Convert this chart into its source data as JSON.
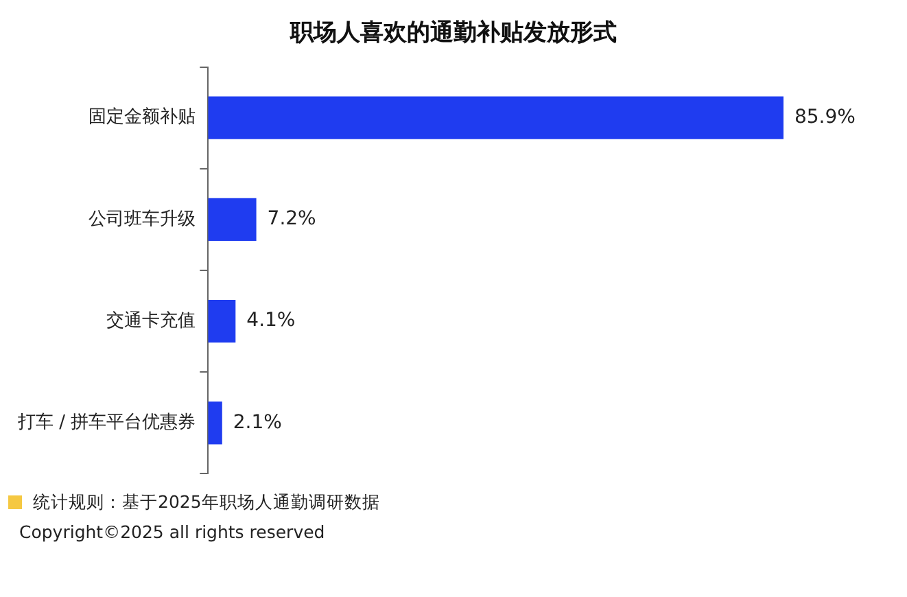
{
  "chart_data": {
    "type": "bar",
    "orientation": "horizontal",
    "title": "职场人喜欢的通勤补贴发放形式",
    "categories": [
      "固定金额补贴",
      "公司班车升级",
      "交通卡充值",
      "打车 / 拼车平台优惠券"
    ],
    "values": [
      85.9,
      7.2,
      4.1,
      2.1
    ],
    "value_labels": [
      "85.9%",
      "7.2%",
      "4.1%",
      "2.1%"
    ],
    "color": "#1f3cf0",
    "tick_labels": "y",
    "grid": false,
    "legend": false,
    "annotations": [
      "统计规则：基于2025年职场人通勤调研数据",
      "Copyright©2025 all rights reserved"
    ]
  }
}
